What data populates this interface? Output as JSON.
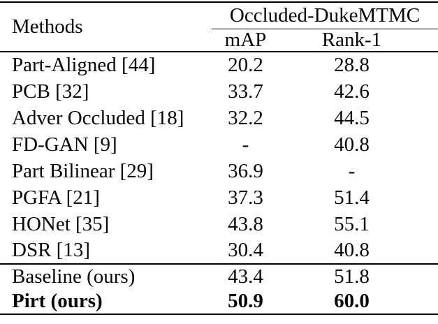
{
  "table": {
    "methods_header": "Methods",
    "group_header": "Occluded-DukeMTMC",
    "col_map": "mAP",
    "col_rank1": "Rank-1",
    "rows": [
      {
        "method": "Part-Aligned [44]",
        "map": "20.2",
        "rank1": "28.8"
      },
      {
        "method": "PCB [32]",
        "map": "33.7",
        "rank1": "42.6"
      },
      {
        "method": "Adver Occluded [18]",
        "map": "32.2",
        "rank1": "44.5"
      },
      {
        "method": "FD-GAN [9]",
        "map": "-",
        "rank1": "40.8"
      },
      {
        "method": "Part Bilinear [29]",
        "map": "36.9",
        "rank1": "-"
      },
      {
        "method": "PGFA [21]",
        "map": "37.3",
        "rank1": "51.4"
      },
      {
        "method": "HONet [35]",
        "map": "43.8",
        "rank1": "55.1"
      },
      {
        "method": "DSR [13]",
        "map": "30.4",
        "rank1": "40.8"
      },
      {
        "method": "Baseline (ours)",
        "map": "43.4",
        "rank1": "51.8"
      },
      {
        "method": "Pirt (ours)",
        "map": "50.9",
        "rank1": "60.0"
      }
    ],
    "colors": {
      "text": "#060606",
      "rule": "#000000",
      "background": "#ffffff"
    }
  }
}
